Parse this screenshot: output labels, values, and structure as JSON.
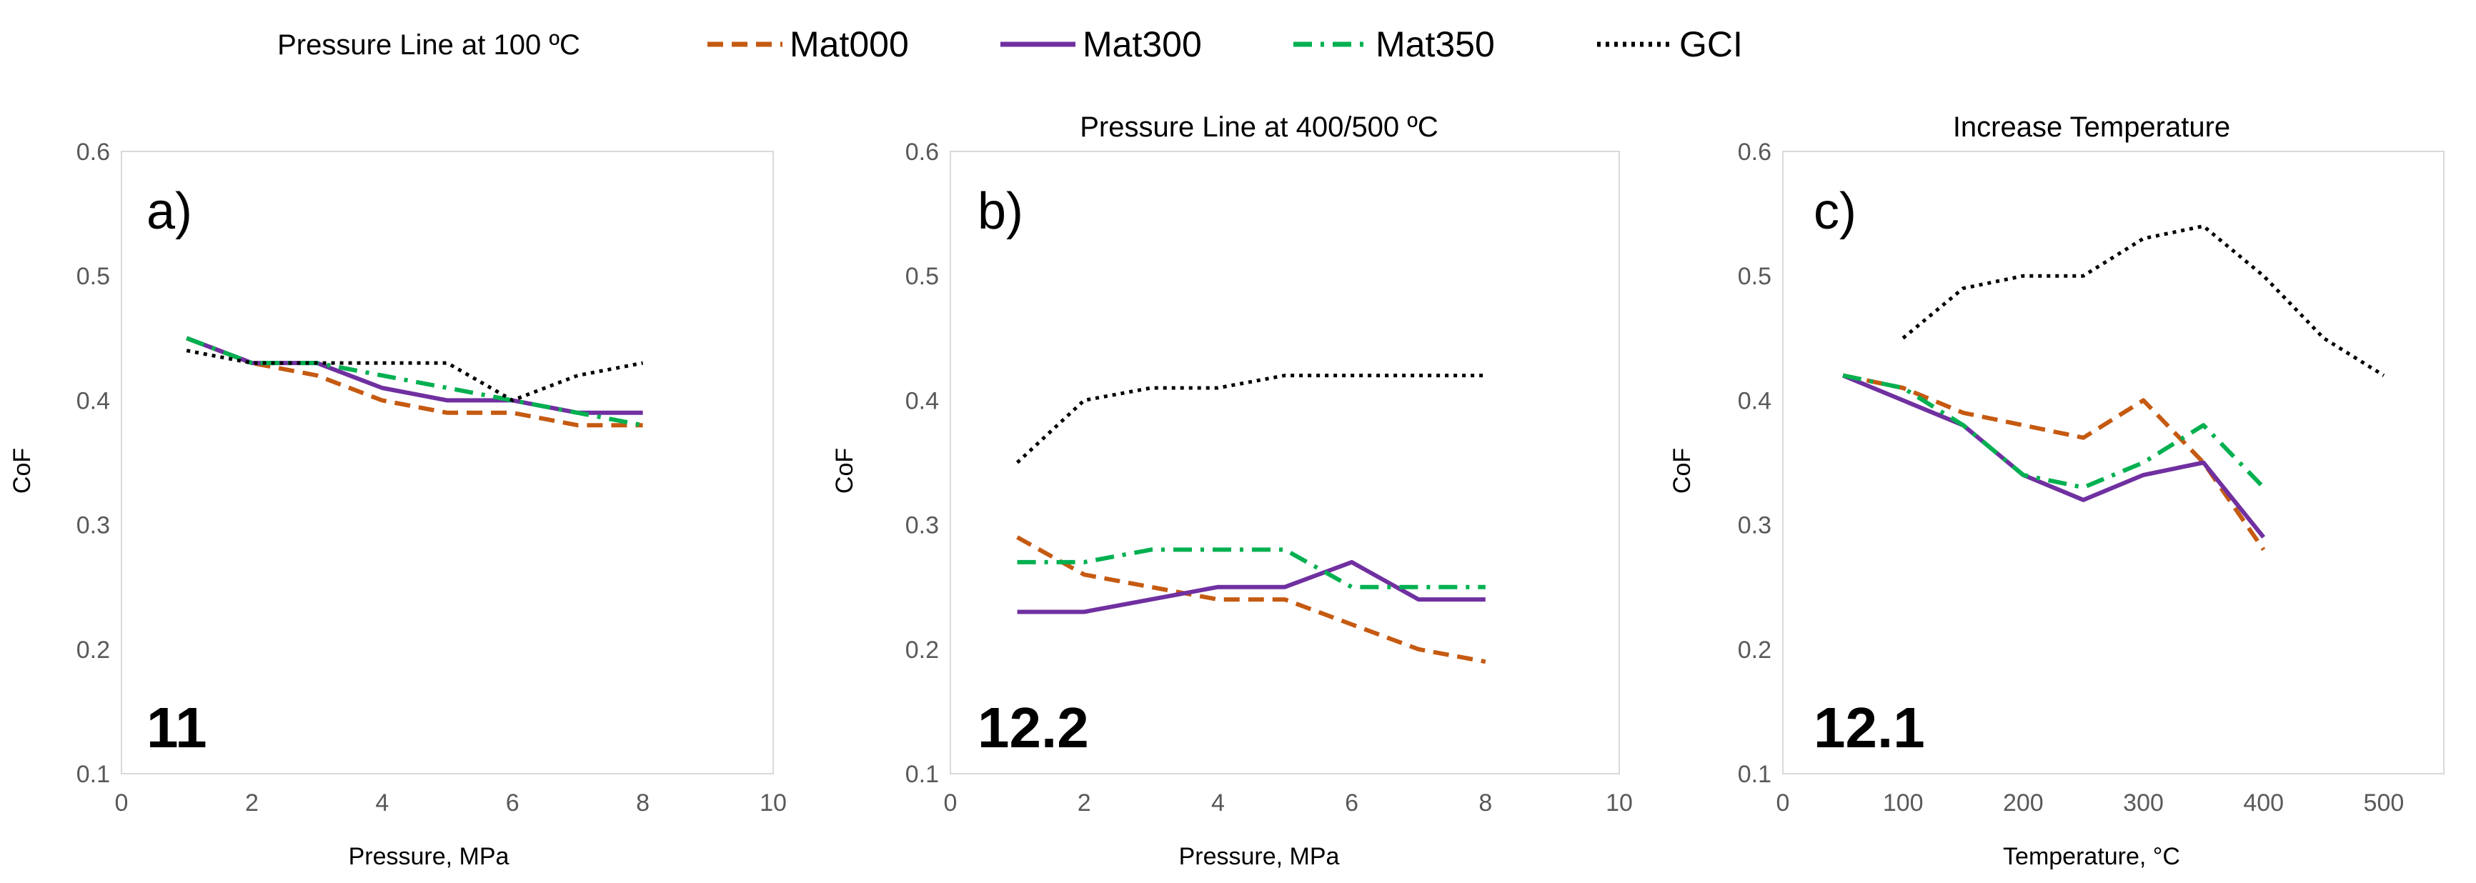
{
  "legend": {
    "entries": [
      {
        "name": "Mat000",
        "color": "#C55A11",
        "dash": "dashed"
      },
      {
        "name": "Mat300",
        "color": "#7030A0",
        "dash": "solid"
      },
      {
        "name": "Mat350",
        "color": "#00B050",
        "dash": "dashdot"
      },
      {
        "name": "GCI",
        "color": "#000000",
        "dash": "dotted"
      }
    ],
    "placement": "top-center"
  },
  "chart_data": [
    {
      "type": "line",
      "title": "Pressure Line at 100 ºC",
      "panel_label": "a)",
      "annotation": "11",
      "xlabel": "Pressure, MPa",
      "ylabel": "CoF",
      "xlim": [
        0,
        10
      ],
      "ylim": [
        0.1,
        0.6
      ],
      "xticks": [
        "0",
        "2",
        "4",
        "6",
        "8",
        "10"
      ],
      "yticks": [
        "0.1",
        "0.2",
        "0.3",
        "0.4",
        "0.5",
        "0.6"
      ],
      "series": [
        {
          "name": "Mat000",
          "x": [
            1,
            2,
            3,
            4,
            5,
            6,
            7,
            8
          ],
          "values": [
            0.45,
            0.43,
            0.42,
            0.4,
            0.39,
            0.39,
            0.38,
            0.38
          ]
        },
        {
          "name": "Mat300",
          "x": [
            1,
            2,
            3,
            4,
            5,
            6,
            7,
            8
          ],
          "values": [
            0.45,
            0.43,
            0.43,
            0.41,
            0.4,
            0.4,
            0.39,
            0.39
          ]
        },
        {
          "name": "Mat350",
          "x": [
            1,
            2,
            3,
            4,
            5,
            6,
            7,
            8
          ],
          "values": [
            0.45,
            0.43,
            0.43,
            0.42,
            0.41,
            0.4,
            0.39,
            0.38
          ]
        },
        {
          "name": "GCI",
          "x": [
            1,
            2,
            3,
            4,
            5,
            6,
            7,
            8
          ],
          "values": [
            0.44,
            0.43,
            0.43,
            0.43,
            0.43,
            0.4,
            0.42,
            0.43
          ]
        }
      ]
    },
    {
      "type": "line",
      "title": "Pressure Line at 400/500 ºC",
      "panel_label": "b)",
      "annotation": "12.2",
      "xlabel": "Pressure, MPa",
      "ylabel": "CoF",
      "xlim": [
        0,
        10
      ],
      "ylim": [
        0.1,
        0.6
      ],
      "xticks": [
        "0",
        "2",
        "4",
        "6",
        "8",
        "10"
      ],
      "yticks": [
        "0.1",
        "0.2",
        "0.3",
        "0.4",
        "0.5",
        "0.6"
      ],
      "series": [
        {
          "name": "Mat000",
          "x": [
            1,
            2,
            3,
            4,
            5,
            6,
            7,
            8
          ],
          "values": [
            0.29,
            0.26,
            0.25,
            0.24,
            0.24,
            0.22,
            0.2,
            0.19
          ]
        },
        {
          "name": "Mat300",
          "x": [
            1,
            2,
            3,
            4,
            5,
            6,
            7,
            8
          ],
          "values": [
            0.23,
            0.23,
            0.24,
            0.25,
            0.25,
            0.27,
            0.24,
            0.24
          ]
        },
        {
          "name": "Mat350",
          "x": [
            1,
            2,
            3,
            4,
            5,
            6,
            7,
            8
          ],
          "values": [
            0.27,
            0.27,
            0.28,
            0.28,
            0.28,
            0.25,
            0.25,
            0.25
          ]
        },
        {
          "name": "GCI",
          "x": [
            1,
            2,
            3,
            4,
            5,
            6,
            7,
            8
          ],
          "values": [
            0.35,
            0.4,
            0.41,
            0.41,
            0.42,
            0.42,
            0.42,
            0.42
          ]
        }
      ]
    },
    {
      "type": "line",
      "title": "Increase Temperature",
      "panel_label": "c)",
      "annotation": "12.1",
      "xlabel": "Temperature,  °C",
      "ylabel": "CoF",
      "xlim": [
        0,
        550
      ],
      "ylim": [
        0.1,
        0.6
      ],
      "xticks": [
        "0",
        "100",
        "200",
        "300",
        "400",
        "500"
      ],
      "xtick_values": [
        0,
        100,
        200,
        300,
        400,
        500
      ],
      "yticks": [
        "0.1",
        "0.2",
        "0.3",
        "0.4",
        "0.5",
        "0.6"
      ],
      "series": [
        {
          "name": "Mat000",
          "x": [
            50,
            100,
            150,
            200,
            250,
            300,
            350,
            400
          ],
          "values": [
            0.42,
            0.41,
            0.39,
            0.38,
            0.37,
            0.4,
            0.35,
            0.28
          ]
        },
        {
          "name": "Mat300",
          "x": [
            50,
            100,
            150,
            200,
            250,
            300,
            350,
            400
          ],
          "values": [
            0.42,
            0.4,
            0.38,
            0.34,
            0.32,
            0.34,
            0.35,
            0.29
          ]
        },
        {
          "name": "Mat350",
          "x": [
            50,
            100,
            150,
            200,
            250,
            300,
            350,
            400
          ],
          "values": [
            0.42,
            0.41,
            0.38,
            0.34,
            0.33,
            0.35,
            0.38,
            0.33
          ]
        },
        {
          "name": "GCI",
          "x": [
            100,
            150,
            200,
            250,
            300,
            350,
            400,
            450,
            500
          ],
          "values": [
            0.45,
            0.49,
            0.5,
            0.5,
            0.53,
            0.54,
            0.5,
            0.45,
            0.42
          ]
        }
      ]
    }
  ]
}
